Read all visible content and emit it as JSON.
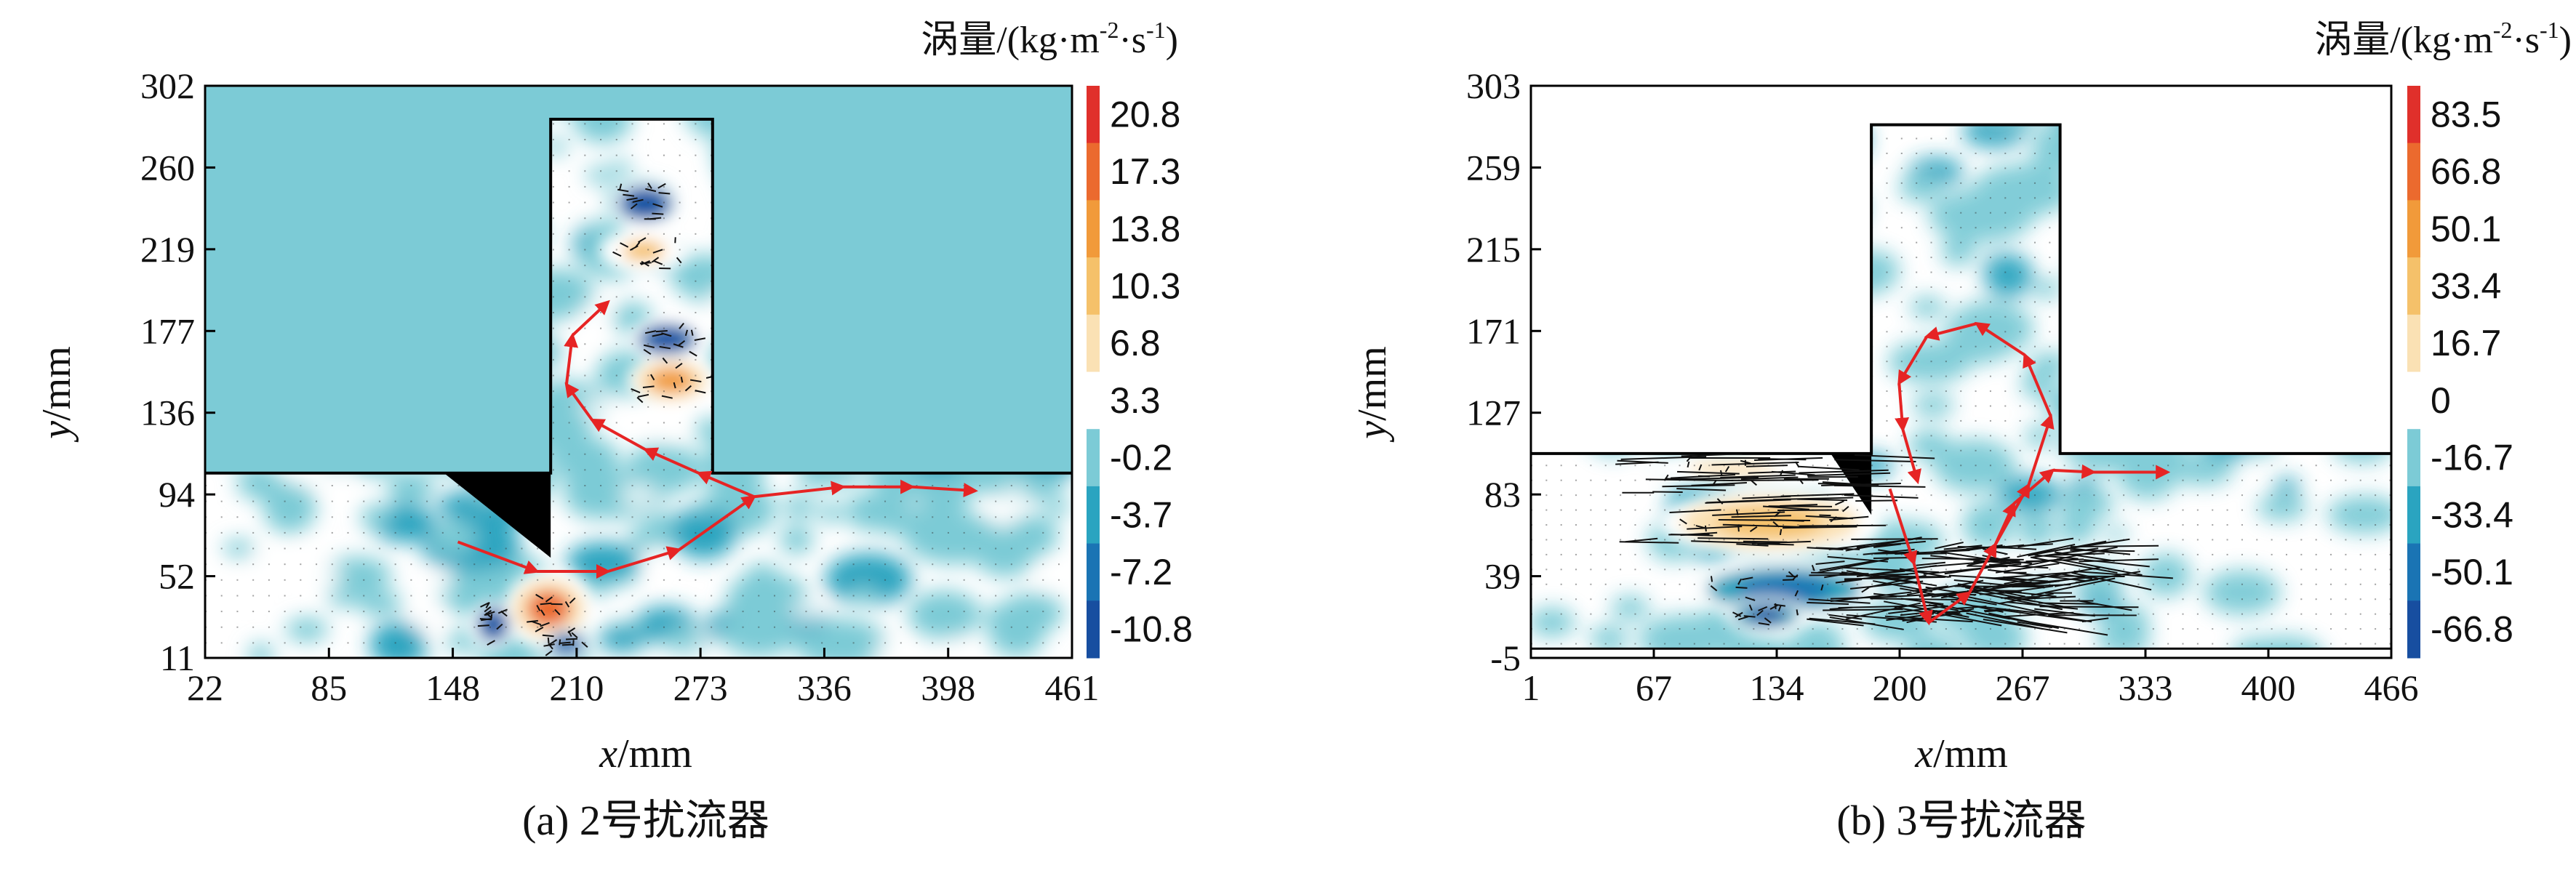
{
  "chart_data": [
    {
      "type": "heatmap",
      "caption": "(a) 2号扰流器",
      "xlabel_var": "x",
      "xlabel_unit": "/mm",
      "ylabel_var": "y",
      "ylabel_unit": "/mm",
      "xlim": [
        22,
        461
      ],
      "ylim": [
        11,
        302
      ],
      "x_ticks": [
        "22",
        "85",
        "148",
        "210",
        "273",
        "336",
        "398",
        "461"
      ],
      "y_ticks": [
        "302",
        "260",
        "219",
        "177",
        "136",
        "94",
        "52",
        "11"
      ],
      "colorbar_title": "涡量/(kg·m",
      "colorbar_sup1": "-2",
      "colorbar_mid": "·s",
      "colorbar_sup2": "-1",
      "colorbar_end": ")",
      "colorbar_ticks": [
        "20.8",
        "17.3",
        "13.8",
        "10.3",
        "6.8",
        "3.3",
        "-0.2",
        "-3.7",
        "-7.2",
        "-10.8"
      ],
      "colorbar_colors": [
        "#e0302b",
        "#eb6a2e",
        "#f19a3a",
        "#f5c16a",
        "#fae1b4",
        "#ffffff",
        "#7ccbd6",
        "#2aa4c0",
        "#1a74b4",
        "#174ea0"
      ],
      "channel": {
        "main_y_top": 105,
        "branch_x": [
          197,
          279
        ],
        "branch_y_top": 285
      },
      "baffle": [
        [
          143,
          105
        ],
        [
          197,
          105
        ],
        [
          197,
          62
        ]
      ],
      "vortices": [
        {
          "x": 245,
          "y": 242,
          "v": -9.0,
          "rx": 14,
          "ry": 9
        },
        {
          "x": 244,
          "y": 218,
          "v": 12.0,
          "rx": 18,
          "ry": 9
        },
        {
          "x": 256,
          "y": 173,
          "v": -9.5,
          "rx": 15,
          "ry": 8
        },
        {
          "x": 258,
          "y": 152,
          "v": 14.0,
          "rx": 18,
          "ry": 10
        },
        {
          "x": 196,
          "y": 36,
          "v": 18.0,
          "rx": 18,
          "ry": 15
        },
        {
          "x": 168,
          "y": 28,
          "v": -8.0,
          "rx": 8,
          "ry": 9
        },
        {
          "x": 205,
          "y": 18,
          "v": -7.0,
          "rx": 9,
          "ry": 6
        }
      ],
      "arrow_path": [
        [
          150,
          70
        ],
        [
          190,
          55
        ],
        [
          226,
          55
        ],
        [
          262,
          66
        ],
        [
          300,
          93
        ],
        [
          345,
          98
        ],
        [
          380,
          98
        ],
        [
          412,
          96
        ]
      ],
      "arrow_loop": [
        [
          300,
          93
        ],
        [
          272,
          105
        ],
        [
          245,
          117
        ],
        [
          218,
          132
        ],
        [
          205,
          150
        ],
        [
          208,
          175
        ],
        [
          226,
          192
        ]
      ]
    },
    {
      "type": "heatmap",
      "caption": "(b) 3号扰流器",
      "xlabel_var": "x",
      "xlabel_unit": "/mm",
      "ylabel_var": "y",
      "ylabel_unit": "/mm",
      "xlim": [
        1,
        466
      ],
      "ylim": [
        -5,
        303
      ],
      "x_ticks": [
        "1",
        "67",
        "134",
        "200",
        "267",
        "333",
        "400",
        "466"
      ],
      "y_ticks": [
        "303",
        "259",
        "215",
        "171",
        "127",
        "83",
        "39",
        "-5"
      ],
      "colorbar_title": "涡量/(kg·m",
      "colorbar_sup1": "-2",
      "colorbar_mid": "·s",
      "colorbar_sup2": "-1",
      "colorbar_end": ")",
      "colorbar_ticks": [
        "83.5",
        "66.8",
        "50.1",
        "33.4",
        "16.7",
        "0",
        "-16.7",
        "-33.4",
        "-50.1",
        "-66.8"
      ],
      "colorbar_colors": [
        "#e0302b",
        "#eb6a2e",
        "#f19a3a",
        "#f5c16a",
        "#fae1b4",
        "#ffffff",
        "#7ccbd6",
        "#2aa4c0",
        "#1a74b4",
        "#174ea0"
      ],
      "channel": {
        "main_y_top": 105,
        "branch_x": [
          185,
          287
        ],
        "branch_y_top": 282,
        "floor_y": 0
      },
      "baffle": [
        [
          163,
          105
        ],
        [
          185,
          105
        ],
        [
          185,
          72
        ]
      ],
      "vortices": [
        {
          "x": 130,
          "y": 68,
          "v": 38.0,
          "rx": 48,
          "ry": 14
        },
        {
          "x": 110,
          "y": 97,
          "v": 30.0,
          "rx": 40,
          "ry": 7
        },
        {
          "x": 138,
          "y": 32,
          "v": -45.0,
          "rx": 42,
          "ry": 12
        },
        {
          "x": 128,
          "y": 18,
          "v": -58.0,
          "rx": 18,
          "ry": 7
        }
      ],
      "arrow_path": [
        [
          195,
          86
        ],
        [
          208,
          46
        ],
        [
          216,
          14
        ],
        [
          238,
          30
        ],
        [
          252,
          56
        ],
        [
          262,
          78
        ],
        [
          283,
          96
        ],
        [
          305,
          95
        ],
        [
          345,
          95
        ]
      ],
      "arrow_loop": [
        [
          252,
          56
        ],
        [
          270,
          88
        ],
        [
          282,
          125
        ],
        [
          268,
          158
        ],
        [
          242,
          175
        ],
        [
          215,
          168
        ],
        [
          200,
          143
        ],
        [
          202,
          118
        ],
        [
          210,
          90
        ]
      ],
      "quiver_band": {
        "x0": 150,
        "x1": 300,
        "y0": 14,
        "y1": 55
      }
    }
  ]
}
